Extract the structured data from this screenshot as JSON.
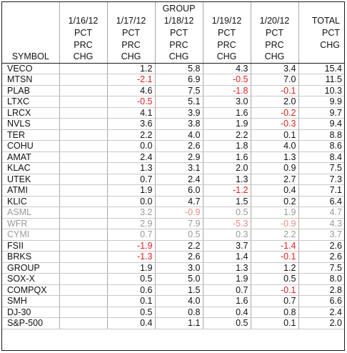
{
  "header": {
    "group_label": "GROUP",
    "dates": [
      "1/16/12",
      "1/17/12",
      "1/18/12",
      "1/19/12",
      "1/20/12"
    ],
    "total_label": "TOTAL",
    "row_pct": "PCT",
    "row_prc": "PRC",
    "row_chg": "CHG",
    "symbol_label": "SYMBOL"
  },
  "colors": {
    "negative": "#e0201c",
    "dimmed": "#9a9a9a"
  },
  "stocks": [
    {
      "symbol": "VECO",
      "values": [
        "",
        "1.2",
        "5.8",
        "4.3",
        "3.4"
      ],
      "total": "15.4"
    },
    {
      "symbol": "MTSN",
      "values": [
        "",
        "-2.1",
        "6.9",
        "-0.5",
        "7.0"
      ],
      "total": "11.5"
    },
    {
      "symbol": "PLAB",
      "values": [
        "",
        "4.6",
        "7.5",
        "-1.8",
        "-0.1"
      ],
      "total": "10.3"
    },
    {
      "symbol": "LTXC",
      "values": [
        "",
        "-0.5",
        "5.1",
        "3.0",
        "2.0"
      ],
      "total": "9.9"
    },
    {
      "symbol": "LRCX",
      "values": [
        "",
        "4.1",
        "3.9",
        "1.6",
        "-0.2"
      ],
      "total": "9.7"
    },
    {
      "symbol": "NVLS",
      "values": [
        "",
        "3.6",
        "3.8",
        "1.9",
        "-0.3"
      ],
      "total": "9.4"
    },
    {
      "symbol": "TER",
      "values": [
        "",
        "2.2",
        "4.0",
        "2.2",
        "0.1"
      ],
      "total": "8.8"
    },
    {
      "symbol": "COHU",
      "values": [
        "",
        "0.0",
        "2.6",
        "1.8",
        "4.0"
      ],
      "total": "8.6"
    },
    {
      "symbol": "AMAT",
      "values": [
        "",
        "2.4",
        "2.9",
        "1.6",
        "1.3"
      ],
      "total": "8.4"
    },
    {
      "symbol": "KLAC",
      "values": [
        "",
        "1.3",
        "3.1",
        "2.0",
        "0.9"
      ],
      "total": "7.5"
    },
    {
      "symbol": "UTEK",
      "values": [
        "",
        "0.7",
        "2.4",
        "1.3",
        "2.7"
      ],
      "total": "7.3"
    },
    {
      "symbol": "ATMI",
      "values": [
        "",
        "1.9",
        "6.0",
        "-1.2",
        "0.4"
      ],
      "total": "7.1"
    },
    {
      "symbol": "KLIC",
      "values": [
        "",
        "0.0",
        "4.7",
        "1.5",
        "0.2"
      ],
      "total": "6.4"
    },
    {
      "symbol": "ASML",
      "values": [
        "",
        "3.2",
        "-0.9",
        "0.5",
        "1.9"
      ],
      "total": "4.7",
      "dim": true
    },
    {
      "symbol": "WFR",
      "values": [
        "",
        "2.9",
        "7.9",
        "-5.3",
        "-0.9"
      ],
      "total": "4.3",
      "dim": true
    },
    {
      "symbol": "CYMI",
      "values": [
        "",
        "0.7",
        "0.5",
        "0.3",
        "2.2"
      ],
      "total": "3.7",
      "dim": true
    },
    {
      "symbol": "FSII",
      "values": [
        "",
        "-1.9",
        "2.2",
        "3.7",
        "-1.4"
      ],
      "total": "2.6"
    },
    {
      "symbol": "BRKS",
      "values": [
        "",
        "-1.3",
        "2.6",
        "1.4",
        "-0.1"
      ],
      "total": "2.6"
    }
  ],
  "indices": [
    {
      "symbol": "GROUP",
      "values": [
        "",
        "1.9",
        "3.0",
        "1.3",
        "1.2"
      ],
      "total": "7.5"
    },
    {
      "symbol": "SOX-X",
      "values": [
        "",
        "0.5",
        "5.0",
        "1.9",
        "0.5"
      ],
      "total": "8.0"
    },
    {
      "symbol": "COMPQX",
      "values": [
        "",
        "0.6",
        "1.5",
        "0.7",
        "-0.1"
      ],
      "total": "2.8"
    },
    {
      "symbol": "SMH",
      "values": [
        "",
        "0.1",
        "4.0",
        "1.6",
        "0.7"
      ],
      "total": "6.6"
    },
    {
      "symbol": "DJ-30",
      "values": [
        "",
        "0.5",
        "0.8",
        "0.4",
        "0.8"
      ],
      "total": "2.4"
    },
    {
      "symbol": "S&P-500",
      "values": [
        "",
        "0.4",
        "1.1",
        "0.5",
        "0.1"
      ],
      "total": "2.0"
    }
  ]
}
